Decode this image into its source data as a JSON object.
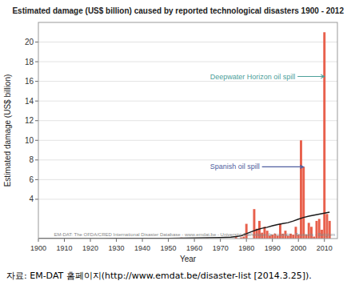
{
  "chart_data": {
    "type": "bar",
    "title": "Estimated damage (US$ billion) caused by reported technological disasters 1900 - 2012",
    "x_label": "Year",
    "y_label": "Estimated damage (US$ billion)",
    "source": "EM-DAT: The OFDA/CRED International Disaster Database - www.emdat.be - Université Catholique de Louvain - Brussels - Belgium",
    "caption": "자료: EM-DAT 홈페이지(http://www.emdat.be/disaster-list [2014.3.25]).",
    "xlim": [
      1900,
      2015
    ],
    "ylim": [
      0,
      22
    ],
    "xticks": [
      1900,
      1910,
      1920,
      1930,
      1940,
      1950,
      1960,
      1970,
      1980,
      1990,
      2000,
      2010
    ],
    "yticks": [
      4,
      6,
      8,
      10,
      12,
      14,
      16,
      18,
      20
    ],
    "grid": true,
    "series": [
      {
        "type": "bar",
        "color": "#E8604C",
        "x": [
          1930,
          1955,
          1965,
          1976,
          1978,
          1979,
          1980,
          1983,
          1984,
          1985,
          1986,
          1987,
          1988,
          1989,
          1990,
          1991,
          1992,
          1993,
          1994,
          1995,
          1996,
          1997,
          1998,
          1999,
          2000,
          2001,
          2002,
          2003,
          2004,
          2005,
          2006,
          2007,
          2008,
          2009,
          2010,
          2011,
          2012
        ],
        "values": [
          0.05,
          0.1,
          0.05,
          0.15,
          0.12,
          0.2,
          1.5,
          3.0,
          1.0,
          1.8,
          0.6,
          1.2,
          0.8,
          0.3,
          0.4,
          0.5,
          0.3,
          1.5,
          0.5,
          0.8,
          0.3,
          0.5,
          0.4,
          1.2,
          0.4,
          10.0,
          7.3,
          0.4,
          1.6,
          1.2,
          0.2,
          1.8,
          2.0,
          0.9,
          21.0,
          2.5,
          1.8
        ]
      },
      {
        "type": "line",
        "color": "#1a1a1a",
        "x": [
          1900,
          1905,
          1910,
          1915,
          1920,
          1925,
          1930,
          1935,
          1940,
          1945,
          1950,
          1955,
          1960,
          1965,
          1970,
          1972,
          1974,
          1976,
          1978,
          1980,
          1982,
          1984,
          1986,
          1988,
          1990,
          1992,
          1994,
          1996,
          1998,
          2000,
          2002,
          2004,
          2006,
          2008,
          2010,
          2012
        ],
        "values": [
          0.01,
          0.01,
          0.01,
          0.01,
          0.01,
          0.01,
          0.02,
          0.02,
          0.02,
          0.02,
          0.03,
          0.05,
          0.07,
          0.08,
          0.1,
          0.12,
          0.15,
          0.2,
          0.28,
          0.5,
          0.7,
          0.9,
          1.05,
          1.15,
          1.3,
          1.42,
          1.52,
          1.62,
          1.78,
          1.98,
          2.15,
          2.28,
          2.38,
          2.48,
          2.58,
          2.68
        ]
      }
    ],
    "annotations": [
      {
        "text": "Deepwater Horizon oil spill",
        "color": "#4DA09A",
        "x": 2010,
        "y": 16.5,
        "text_x": 1966,
        "text_y": 16.5
      },
      {
        "text": "Spanish oil spill",
        "color": "#5060A0",
        "x": 2002,
        "y": 7.3,
        "text_x": 1966,
        "text_y": 7.3
      }
    ]
  }
}
